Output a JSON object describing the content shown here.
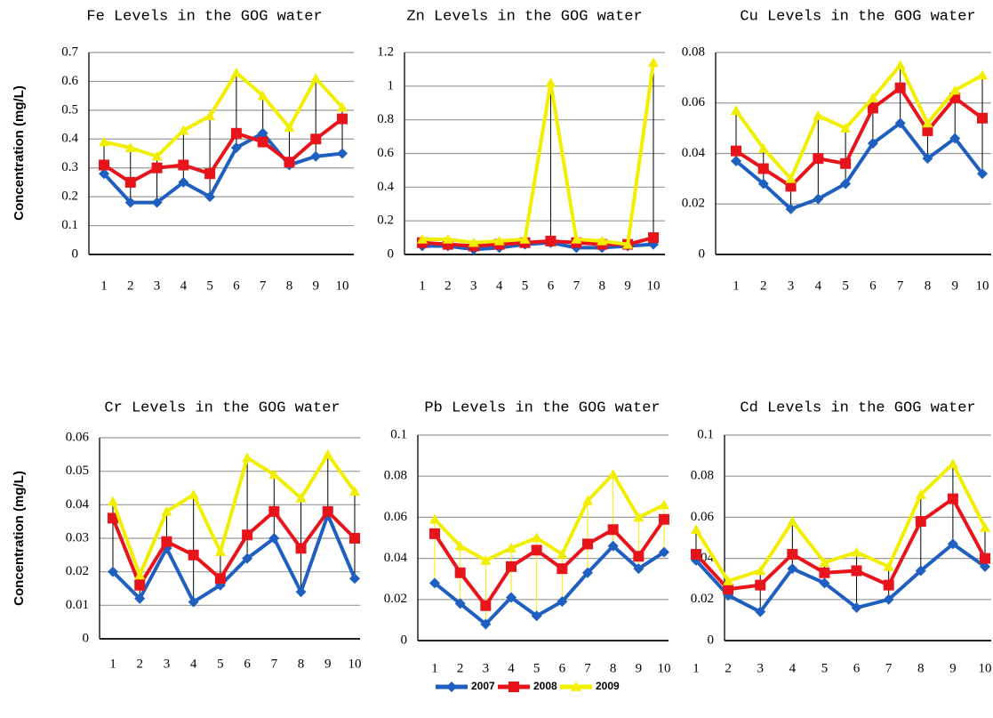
{
  "chart_data": [
    {
      "type": "line",
      "title": "Fe Levels in the GOG water",
      "ylabel": "Concentration (mg/L)",
      "categories": [
        "1",
        "2",
        "3",
        "4",
        "5",
        "6",
        "7",
        "8",
        "9",
        "10"
      ],
      "ylim": [
        0,
        0.7
      ],
      "yticks": [
        0,
        0.1,
        0.2,
        0.3,
        0.4,
        0.5,
        0.6,
        0.7
      ],
      "grid": true,
      "hilo_color": "#000000",
      "series": [
        {
          "name": "2007",
          "color": "#1f5fbf",
          "marker": "diamond",
          "values": [
            0.28,
            0.18,
            0.18,
            0.25,
            0.2,
            0.37,
            0.42,
            0.31,
            0.34,
            0.35
          ]
        },
        {
          "name": "2008",
          "color": "#e8141c",
          "marker": "square",
          "values": [
            0.31,
            0.25,
            0.3,
            0.31,
            0.28,
            0.42,
            0.39,
            0.32,
            0.4,
            0.47
          ]
        },
        {
          "name": "2009",
          "color": "#f2ee00",
          "marker": "triangle",
          "values": [
            0.39,
            0.37,
            0.34,
            0.43,
            0.48,
            0.63,
            0.55,
            0.44,
            0.61,
            0.51
          ]
        }
      ]
    },
    {
      "type": "line",
      "title": "Zn Levels in the GOG water",
      "categories": [
        "1",
        "2",
        "3",
        "4",
        "5",
        "6",
        "7",
        "8",
        "9",
        "10"
      ],
      "ylim": [
        0,
        1.2
      ],
      "yticks": [
        0,
        0.2,
        0.4,
        0.6,
        0.8,
        1,
        1.2
      ],
      "grid": true,
      "hilo_color": "#000000",
      "series": [
        {
          "name": "2007",
          "color": "#1f5fbf",
          "marker": "diamond",
          "values": [
            0.05,
            0.05,
            0.03,
            0.04,
            0.06,
            0.07,
            0.04,
            0.04,
            0.05,
            0.06
          ]
        },
        {
          "name": "2008",
          "color": "#e8141c",
          "marker": "square",
          "values": [
            0.07,
            0.06,
            0.05,
            0.06,
            0.07,
            0.08,
            0.07,
            0.06,
            0.06,
            0.1
          ]
        },
        {
          "name": "2009",
          "color": "#f2ee00",
          "marker": "triangle",
          "values": [
            0.09,
            0.09,
            0.07,
            0.08,
            0.09,
            1.02,
            0.09,
            0.08,
            0.06,
            1.14
          ]
        }
      ]
    },
    {
      "type": "line",
      "title": "Cu Levels in the GOG water",
      "categories": [
        "1",
        "2",
        "3",
        "4",
        "5",
        "6",
        "7",
        "8",
        "9",
        "10"
      ],
      "ylim": [
        0,
        0.08
      ],
      "yticks": [
        0,
        0.02,
        0.04,
        0.06,
        0.08
      ],
      "grid": true,
      "hilo_color": "#000000",
      "series": [
        {
          "name": "2007",
          "color": "#1f5fbf",
          "marker": "diamond",
          "values": [
            0.037,
            0.028,
            0.018,
            0.022,
            0.028,
            0.044,
            0.052,
            0.038,
            0.046,
            0.032
          ]
        },
        {
          "name": "2008",
          "color": "#e8141c",
          "marker": "square",
          "values": [
            0.041,
            0.034,
            0.027,
            0.038,
            0.036,
            0.058,
            0.066,
            0.049,
            0.062,
            0.054
          ]
        },
        {
          "name": "2009",
          "color": "#f2ee00",
          "marker": "triangle",
          "values": [
            0.057,
            0.042,
            0.03,
            0.055,
            0.05,
            0.062,
            0.075,
            0.052,
            0.065,
            0.071
          ]
        }
      ]
    },
    {
      "type": "line",
      "title": "Cr Levels in the GOG water",
      "ylabel": "Concentration (mg/L)",
      "categories": [
        "1",
        "2",
        "3",
        "4",
        "5",
        "6",
        "7",
        "8",
        "9",
        "10"
      ],
      "ylim": [
        0,
        0.06
      ],
      "yticks": [
        0,
        0.01,
        0.02,
        0.03,
        0.04,
        0.05,
        0.06
      ],
      "grid": true,
      "hilo_color": "#000000",
      "series": [
        {
          "name": "2007",
          "color": "#1f5fbf",
          "marker": "diamond",
          "values": [
            0.02,
            0.012,
            0.027,
            0.011,
            0.016,
            0.024,
            0.03,
            0.014,
            0.037,
            0.018
          ]
        },
        {
          "name": "2008",
          "color": "#e8141c",
          "marker": "square",
          "values": [
            0.036,
            0.016,
            0.029,
            0.025,
            0.018,
            0.031,
            0.038,
            0.027,
            0.038,
            0.03
          ]
        },
        {
          "name": "2009",
          "color": "#f2ee00",
          "marker": "triangle",
          "values": [
            0.041,
            0.019,
            0.038,
            0.043,
            0.026,
            0.054,
            0.049,
            0.042,
            0.055,
            0.044
          ]
        }
      ]
    },
    {
      "type": "line",
      "title": "Pb Levels in the GOG water",
      "categories": [
        "1",
        "2",
        "3",
        "4",
        "5",
        "6",
        "7",
        "8",
        "9",
        "10"
      ],
      "ylim": [
        0,
        0.1
      ],
      "yticks": [
        0,
        0.02,
        0.04,
        0.06,
        0.08,
        0.1
      ],
      "grid": true,
      "hilo_color": "#f2ee00",
      "series": [
        {
          "name": "2007",
          "color": "#1f5fbf",
          "marker": "diamond",
          "values": [
            0.028,
            0.018,
            0.008,
            0.021,
            0.012,
            0.019,
            0.033,
            0.046,
            0.035,
            0.043
          ]
        },
        {
          "name": "2008",
          "color": "#e8141c",
          "marker": "square",
          "values": [
            0.052,
            0.033,
            0.017,
            0.036,
            0.044,
            0.035,
            0.047,
            0.054,
            0.041,
            0.059
          ]
        },
        {
          "name": "2009",
          "color": "#f2ee00",
          "marker": "triangle",
          "values": [
            0.059,
            0.046,
            0.039,
            0.045,
            0.05,
            0.042,
            0.068,
            0.081,
            0.06,
            0.066
          ]
        }
      ]
    },
    {
      "type": "line",
      "title": "Cd Levels in the GOG water",
      "categories": [
        "1",
        "2",
        "3",
        "4",
        "5",
        "6",
        "7",
        "8",
        "9",
        "10"
      ],
      "ylim": [
        0,
        0.1
      ],
      "yticks": [
        0,
        0.02,
        0.04,
        0.06,
        0.08,
        0.1
      ],
      "grid": true,
      "hilo_color": "#000000",
      "series": [
        {
          "name": "2007",
          "color": "#1f5fbf",
          "marker": "diamond",
          "values": [
            0.039,
            0.022,
            0.014,
            0.035,
            0.028,
            0.016,
            0.02,
            0.034,
            0.047,
            0.036
          ]
        },
        {
          "name": "2008",
          "color": "#e8141c",
          "marker": "square",
          "values": [
            0.042,
            0.025,
            0.027,
            0.042,
            0.033,
            0.034,
            0.027,
            0.058,
            0.069,
            0.04
          ]
        },
        {
          "name": "2009",
          "color": "#f2ee00",
          "marker": "triangle",
          "values": [
            0.054,
            0.029,
            0.034,
            0.058,
            0.038,
            0.043,
            0.036,
            0.071,
            0.086,
            0.055
          ]
        }
      ]
    }
  ]
}
